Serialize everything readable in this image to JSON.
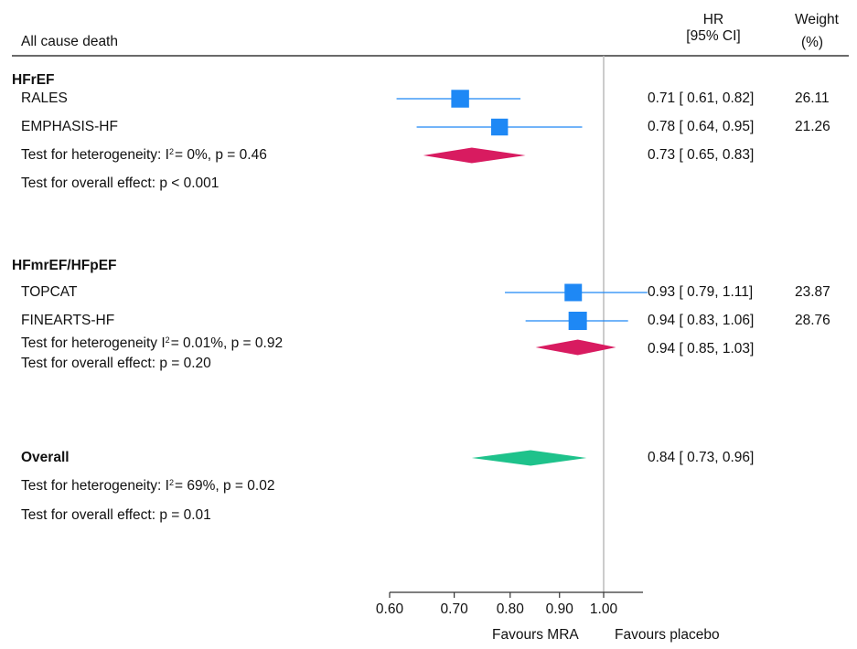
{
  "header": {
    "outcome": "All cause death",
    "hr_label_1": "HR",
    "hr_label_2": "[95% CI]",
    "weight_label_1": "Weight",
    "weight_label_2": "(%)"
  },
  "groups": [
    {
      "name": "HFrEF",
      "het_prefix": "Test for heterogeneity: I",
      "het_sup": "2",
      "het_suffix": "= 0%, p = 0.46",
      "overall_effect": "Test for overall effect: p < 0.001",
      "summary_text": "0.73 [ 0.65, 0.83]"
    },
    {
      "name": "HFmrEF/HFpEF",
      "het_prefix": "Test for heterogeneity I",
      "het_sup": "2",
      "het_suffix": "= 0.01%, p = 0.92",
      "overall_effect": "Test for overall effect: p = 0.20",
      "summary_text": "0.94 [ 0.85, 1.03]"
    }
  ],
  "studies": [
    {
      "name": "RALES",
      "hr_text": "0.71 [ 0.61, 0.82]",
      "weight": "26.11"
    },
    {
      "name": "EMPHASIS-HF",
      "hr_text": "0.78 [ 0.64, 0.95]",
      "weight": "21.26"
    },
    {
      "name": "TOPCAT",
      "hr_text": "0.93 [ 0.79, 1.11]",
      "weight": "23.87"
    },
    {
      "name": "FINEARTS-HF",
      "hr_text": "0.94 [ 0.83, 1.06]",
      "weight": "28.76"
    }
  ],
  "overall": {
    "name": "Overall",
    "het_prefix": "Test for heterogeneity: I",
    "het_sup": "2",
    "het_suffix": "= 69%, p = 0.02",
    "overall_effect": "Test for overall effect: p = 0.01",
    "summary_text": "0.84 [ 0.73, 0.96]"
  },
  "footer": {
    "favours_left": "Favours MRA",
    "favours_right": "Favours placebo"
  },
  "colors": {
    "study": "#1e88f5",
    "subgroup_diamond": "#d81b60",
    "overall_diamond": "#1ec28b",
    "reference_line": "#bbbbbb",
    "axis": "#333333"
  },
  "chart_data": {
    "type": "forest",
    "scale": "log",
    "xlim": [
      0.6,
      1.1
    ],
    "ticks": [
      0.6,
      0.7,
      0.8,
      0.9,
      1.0
    ],
    "tick_labels": [
      "0.60",
      "0.70",
      "0.80",
      "0.90",
      "1.00"
    ],
    "reference": 1.0,
    "studies": [
      {
        "name": "RALES",
        "hr": 0.71,
        "lo": 0.61,
        "hi": 0.82,
        "weight": 26.11
      },
      {
        "name": "EMPHASIS-HF",
        "hr": 0.78,
        "lo": 0.64,
        "hi": 0.95,
        "weight": 21.26
      },
      {
        "name": "TOPCAT",
        "hr": 0.93,
        "lo": 0.79,
        "hi": 1.11,
        "weight": 23.87
      },
      {
        "name": "FINEARTS-HF",
        "hr": 0.94,
        "lo": 0.83,
        "hi": 1.06,
        "weight": 28.76
      }
    ],
    "summaries": [
      {
        "name": "HFrEF",
        "hr": 0.73,
        "lo": 0.65,
        "hi": 0.83,
        "kind": "subgroup"
      },
      {
        "name": "HFmrEF/HFpEF",
        "hr": 0.94,
        "lo": 0.85,
        "hi": 1.03,
        "kind": "subgroup"
      },
      {
        "name": "Overall",
        "hr": 0.84,
        "lo": 0.73,
        "hi": 0.96,
        "kind": "overall"
      }
    ]
  }
}
